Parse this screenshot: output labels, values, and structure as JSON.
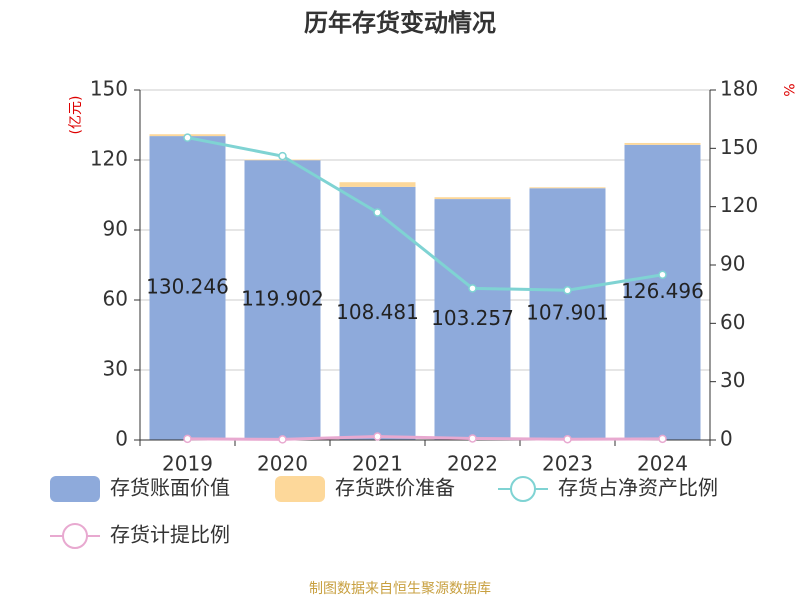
{
  "chart_data": {
    "type": "bar-line",
    "title": "历年存货变动情况",
    "y_label": "(亿元)",
    "y2_label": "%",
    "source": "制图数据来自恒生聚源数据库",
    "categories": [
      "2019",
      "2020",
      "2021",
      "2022",
      "2023",
      "2024"
    ],
    "ylim": [
      0,
      150
    ],
    "yticks": [
      0,
      30,
      60,
      90,
      120,
      150
    ],
    "y2lim": [
      0,
      180
    ],
    "y2ticks": [
      0,
      30,
      60,
      90,
      120,
      150,
      180
    ],
    "grid": true,
    "series": [
      {
        "name": "存货账面价值",
        "type": "bar",
        "color": "#8eaadb",
        "values": [
          130.246,
          119.902,
          108.481,
          103.257,
          107.901,
          126.496
        ],
        "show_labels": true
      },
      {
        "name": "存货跌价准备",
        "type": "bar",
        "color": "#fdd89a",
        "values": [
          0.8,
          0.3,
          2.0,
          0.8,
          0.4,
          0.8
        ]
      },
      {
        "name": "存货占净资产比例",
        "type": "line",
        "axis": "y2",
        "color": "#7fd3d3",
        "values": [
          155.5,
          146,
          117,
          78,
          77,
          85
        ]
      },
      {
        "name": "存货计提比例",
        "type": "line",
        "axis": "y2",
        "color": "#e8a9d0",
        "values": [
          0.6,
          0.3,
          1.8,
          0.8,
          0.4,
          0.6
        ]
      }
    ]
  }
}
